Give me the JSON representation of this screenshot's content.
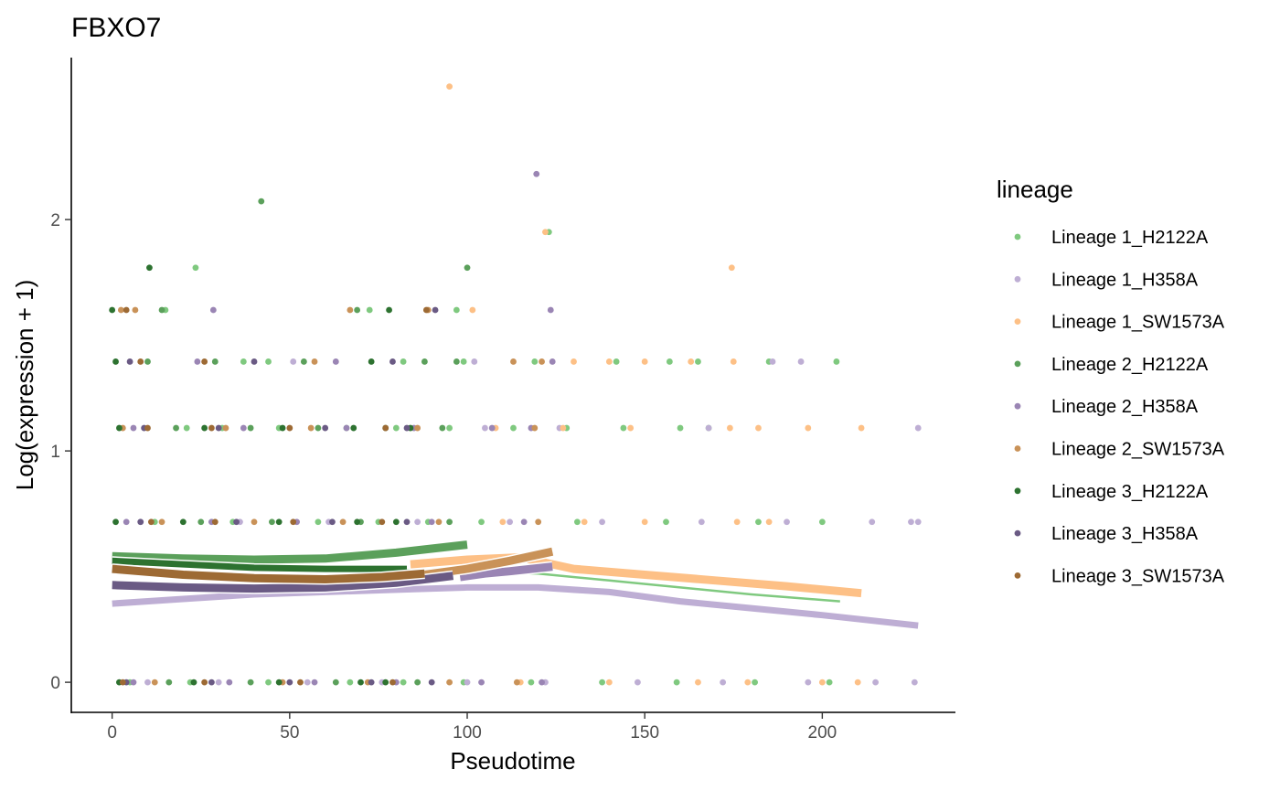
{
  "chart_data": {
    "type": "scatter",
    "title": "FBXO7",
    "xlabel": "Pseudotime",
    "ylabel": "Log(expression + 1)",
    "xlim": [
      -11.5,
      237.5
    ],
    "ylim": [
      -0.13,
      2.7
    ],
    "x_ticks": [
      0,
      50,
      100,
      150,
      200
    ],
    "y_ticks": [
      0,
      1,
      2
    ],
    "grid": false,
    "legend": {
      "title": "lineage",
      "placement": "right"
    },
    "series": [
      {
        "name": "Lineage 1_H2122A",
        "color": "#7FC97F",
        "points": [
          [
            23.5,
            1.792
          ],
          [
            97,
            1.609
          ],
          [
            72.5,
            1.609
          ],
          [
            123,
            1.946
          ],
          [
            15,
            1.609
          ],
          [
            37,
            1.386
          ],
          [
            44,
            1.386
          ],
          [
            82,
            1.386
          ],
          [
            99,
            1.386
          ],
          [
            119,
            1.386
          ],
          [
            142,
            1.386
          ],
          [
            157,
            1.386
          ],
          [
            165,
            1.386
          ],
          [
            185,
            1.386
          ],
          [
            204,
            1.386
          ],
          [
            21,
            1.099
          ],
          [
            31,
            1.099
          ],
          [
            47,
            1.099
          ],
          [
            66,
            1.099
          ],
          [
            80,
            1.099
          ],
          [
            95,
            1.099
          ],
          [
            113,
            1.099
          ],
          [
            128,
            1.099
          ],
          [
            144,
            1.099
          ],
          [
            160,
            1.099
          ],
          [
            168,
            1.099
          ],
          [
            12,
            0.693
          ],
          [
            34,
            0.693
          ],
          [
            58,
            0.693
          ],
          [
            75,
            0.693
          ],
          [
            89,
            0.693
          ],
          [
            104,
            0.693
          ],
          [
            131,
            0.693
          ],
          [
            156,
            0.693
          ],
          [
            182,
            0.693
          ],
          [
            200,
            0.693
          ],
          [
            5,
            0
          ],
          [
            22,
            0
          ],
          [
            44,
            0
          ],
          [
            67,
            0
          ],
          [
            82,
            0
          ],
          [
            99,
            0
          ],
          [
            118,
            0
          ],
          [
            138,
            0
          ],
          [
            159,
            0
          ],
          [
            181,
            0
          ],
          [
            202,
            0
          ]
        ],
        "smooth": [
          [
            0,
            0.53
          ],
          [
            20,
            0.52
          ],
          [
            40,
            0.5
          ],
          [
            60,
            0.49
          ],
          [
            80,
            0.485
          ],
          [
            100,
            0.48
          ],
          [
            120,
            0.47
          ],
          [
            140,
            0.44
          ],
          [
            160,
            0.41
          ],
          [
            180,
            0.38
          ],
          [
            205,
            0.35
          ]
        ]
      },
      {
        "name": "Lineage 1_H358A",
        "color": "#BEAED4",
        "points": [
          [
            51,
            1.386
          ],
          [
            102,
            1.386
          ],
          [
            186,
            1.386
          ],
          [
            194,
            1.386
          ],
          [
            227,
            1.099
          ],
          [
            105,
            1.099
          ],
          [
            126,
            1.099
          ],
          [
            168,
            1.099
          ],
          [
            8,
            0.693
          ],
          [
            36,
            0.693
          ],
          [
            61,
            0.693
          ],
          [
            86,
            0.693
          ],
          [
            112,
            0.693
          ],
          [
            138,
            0.693
          ],
          [
            166,
            0.693
          ],
          [
            190,
            0.693
          ],
          [
            214,
            0.693
          ],
          [
            225,
            0.693
          ],
          [
            227,
            0.693
          ],
          [
            10,
            0
          ],
          [
            30,
            0
          ],
          [
            55,
            0
          ],
          [
            76,
            0
          ],
          [
            100,
            0
          ],
          [
            122,
            0
          ],
          [
            148,
            0
          ],
          [
            172,
            0
          ],
          [
            196,
            0
          ],
          [
            215,
            0
          ],
          [
            226,
            0
          ]
        ],
        "smooth": [
          [
            0,
            0.34
          ],
          [
            20,
            0.36
          ],
          [
            40,
            0.38
          ],
          [
            60,
            0.39
          ],
          [
            80,
            0.4
          ],
          [
            100,
            0.41
          ],
          [
            120,
            0.41
          ],
          [
            140,
            0.39
          ],
          [
            160,
            0.35
          ],
          [
            180,
            0.32
          ],
          [
            200,
            0.29
          ],
          [
            227,
            0.245
          ]
        ]
      },
      {
        "name": "Lineage 1_SW1573A",
        "color": "#FDC086",
        "points": [
          [
            95,
            2.575
          ],
          [
            122,
            1.946
          ],
          [
            101.5,
            1.609
          ],
          [
            174.5,
            1.792
          ],
          [
            130,
            1.386
          ],
          [
            140,
            1.386
          ],
          [
            150,
            1.386
          ],
          [
            163,
            1.386
          ],
          [
            175,
            1.386
          ],
          [
            108,
            1.099
          ],
          [
            127,
            1.099
          ],
          [
            146,
            1.099
          ],
          [
            174,
            1.099
          ],
          [
            182,
            1.099
          ],
          [
            196,
            1.099
          ],
          [
            211,
            1.099
          ],
          [
            110,
            0.693
          ],
          [
            133,
            0.693
          ],
          [
            150,
            0.693
          ],
          [
            176,
            0.693
          ],
          [
            185,
            0.693
          ],
          [
            115,
            0
          ],
          [
            140,
            0
          ],
          [
            165,
            0
          ],
          [
            179,
            0
          ],
          [
            200,
            0
          ],
          [
            210,
            0
          ]
        ],
        "smooth": [
          [
            84,
            0.51
          ],
          [
            100,
            0.53
          ],
          [
            115,
            0.54
          ],
          [
            130,
            0.49
          ],
          [
            150,
            0.465
          ],
          [
            170,
            0.44
          ],
          [
            190,
            0.415
          ],
          [
            211,
            0.385
          ]
        ]
      },
      {
        "name": "Lineage 2_H2122A",
        "color": "#5BA05B",
        "points": [
          [
            42,
            2.079
          ],
          [
            100,
            1.792
          ],
          [
            14,
            1.609
          ],
          [
            69,
            1.609
          ],
          [
            10,
            1.386
          ],
          [
            29,
            1.386
          ],
          [
            54,
            1.386
          ],
          [
            88,
            1.386
          ],
          [
            97,
            1.386
          ],
          [
            18,
            1.099
          ],
          [
            39,
            1.099
          ],
          [
            58,
            1.099
          ],
          [
            77,
            1.099
          ],
          [
            93,
            1.099
          ],
          [
            25,
            0.693
          ],
          [
            45,
            0.693
          ],
          [
            70,
            0.693
          ],
          [
            95,
            0.693
          ],
          [
            16,
            0
          ],
          [
            39,
            0
          ],
          [
            63,
            0
          ],
          [
            86,
            0
          ]
        ],
        "smooth": [
          [
            0,
            0.545
          ],
          [
            20,
            0.535
          ],
          [
            40,
            0.53
          ],
          [
            60,
            0.535
          ],
          [
            80,
            0.56
          ],
          [
            100,
            0.595
          ]
        ]
      },
      {
        "name": "Lineage 2_H358A",
        "color": "#9A85B4",
        "points": [
          [
            119.5,
            2.197
          ],
          [
            28.5,
            1.609
          ],
          [
            123.5,
            1.609
          ],
          [
            24,
            1.386
          ],
          [
            63,
            1.386
          ],
          [
            124,
            1.386
          ],
          [
            6,
            1.099
          ],
          [
            37,
            1.099
          ],
          [
            66,
            1.099
          ],
          [
            85,
            1.099
          ],
          [
            107,
            1.099
          ],
          [
            118,
            1.099
          ],
          [
            4,
            0.693
          ],
          [
            28,
            0.693
          ],
          [
            52,
            0.693
          ],
          [
            90,
            0.693
          ],
          [
            116,
            0.693
          ],
          [
            6,
            0
          ],
          [
            33,
            0
          ],
          [
            57,
            0
          ],
          [
            80,
            0
          ],
          [
            104,
            0
          ],
          [
            121,
            0
          ]
        ],
        "smooth": [
          [
            98,
            0.455
          ],
          [
            105,
            0.47
          ],
          [
            112,
            0.48
          ],
          [
            124,
            0.5
          ]
        ]
      },
      {
        "name": "Lineage 2_SW1573A",
        "color": "#C99258",
        "points": [
          [
            67,
            1.609
          ],
          [
            2.5,
            1.609
          ],
          [
            6.5,
            1.609
          ],
          [
            89,
            1.609
          ],
          [
            57,
            1.386
          ],
          [
            113,
            1.386
          ],
          [
            121,
            1.386
          ],
          [
            3,
            1.099
          ],
          [
            32,
            1.099
          ],
          [
            56,
            1.099
          ],
          [
            86,
            1.099
          ],
          [
            119,
            1.099
          ],
          [
            14,
            0.693
          ],
          [
            40,
            0.693
          ],
          [
            65,
            0.693
          ],
          [
            92,
            0.693
          ],
          [
            120,
            0.693
          ],
          [
            12,
            0
          ],
          [
            48,
            0
          ],
          [
            72,
            0
          ],
          [
            95,
            0
          ],
          [
            114,
            0
          ]
        ],
        "smooth": [
          [
            88,
            0.465
          ],
          [
            100,
            0.49
          ],
          [
            112,
            0.525
          ],
          [
            124,
            0.565
          ]
        ]
      },
      {
        "name": "Lineage 3_H2122A",
        "color": "#2D7230",
        "points": [
          [
            10.5,
            1.792
          ],
          [
            0,
            1.609
          ],
          [
            78,
            1.609
          ],
          [
            1,
            1.386
          ],
          [
            73,
            1.386
          ],
          [
            2,
            1.099
          ],
          [
            26,
            1.099
          ],
          [
            48,
            1.099
          ],
          [
            68,
            1.099
          ],
          [
            84,
            1.099
          ],
          [
            1,
            0.693
          ],
          [
            20,
            0.693
          ],
          [
            47,
            0.693
          ],
          [
            69,
            0.693
          ],
          [
            80,
            0.693
          ],
          [
            2,
            0
          ],
          [
            23,
            0
          ],
          [
            47,
            0
          ],
          [
            70,
            0
          ],
          [
            77,
            0
          ]
        ],
        "smooth": [
          [
            0,
            0.525
          ],
          [
            20,
            0.51
          ],
          [
            40,
            0.495
          ],
          [
            60,
            0.49
          ],
          [
            83,
            0.49
          ]
        ]
      },
      {
        "name": "Lineage 3_H358A",
        "color": "#6A5A84",
        "points": [
          [
            91,
            1.609
          ],
          [
            5,
            1.386
          ],
          [
            40,
            1.386
          ],
          [
            79,
            1.386
          ],
          [
            9,
            1.099
          ],
          [
            30,
            1.099
          ],
          [
            60,
            1.099
          ],
          [
            83,
            1.099
          ],
          [
            8,
            0.693
          ],
          [
            35,
            0.693
          ],
          [
            62,
            0.693
          ],
          [
            83,
            0.693
          ],
          [
            4,
            0
          ],
          [
            28,
            0
          ],
          [
            50,
            0
          ],
          [
            73,
            0
          ],
          [
            90,
            0
          ]
        ],
        "smooth": [
          [
            0,
            0.42
          ],
          [
            20,
            0.41
          ],
          [
            40,
            0.405
          ],
          [
            60,
            0.41
          ],
          [
            80,
            0.43
          ],
          [
            96,
            0.46
          ]
        ]
      },
      {
        "name": "Lineage 3_SW1573A",
        "color": "#9D6A34",
        "points": [
          [
            88.5,
            1.609
          ],
          [
            4,
            1.609
          ],
          [
            8,
            1.386
          ],
          [
            26,
            1.386
          ],
          [
            10,
            1.099
          ],
          [
            28,
            1.099
          ],
          [
            50,
            1.099
          ],
          [
            77,
            1.099
          ],
          [
            11,
            0.693
          ],
          [
            29,
            0.693
          ],
          [
            51,
            0.693
          ],
          [
            76,
            0.693
          ],
          [
            3,
            0
          ],
          [
            26,
            0
          ],
          [
            53,
            0
          ],
          [
            79,
            0
          ]
        ],
        "smooth": [
          [
            0,
            0.49
          ],
          [
            20,
            0.465
          ],
          [
            40,
            0.45
          ],
          [
            60,
            0.445
          ],
          [
            76,
            0.455
          ],
          [
            88,
            0.47
          ]
        ]
      }
    ]
  }
}
